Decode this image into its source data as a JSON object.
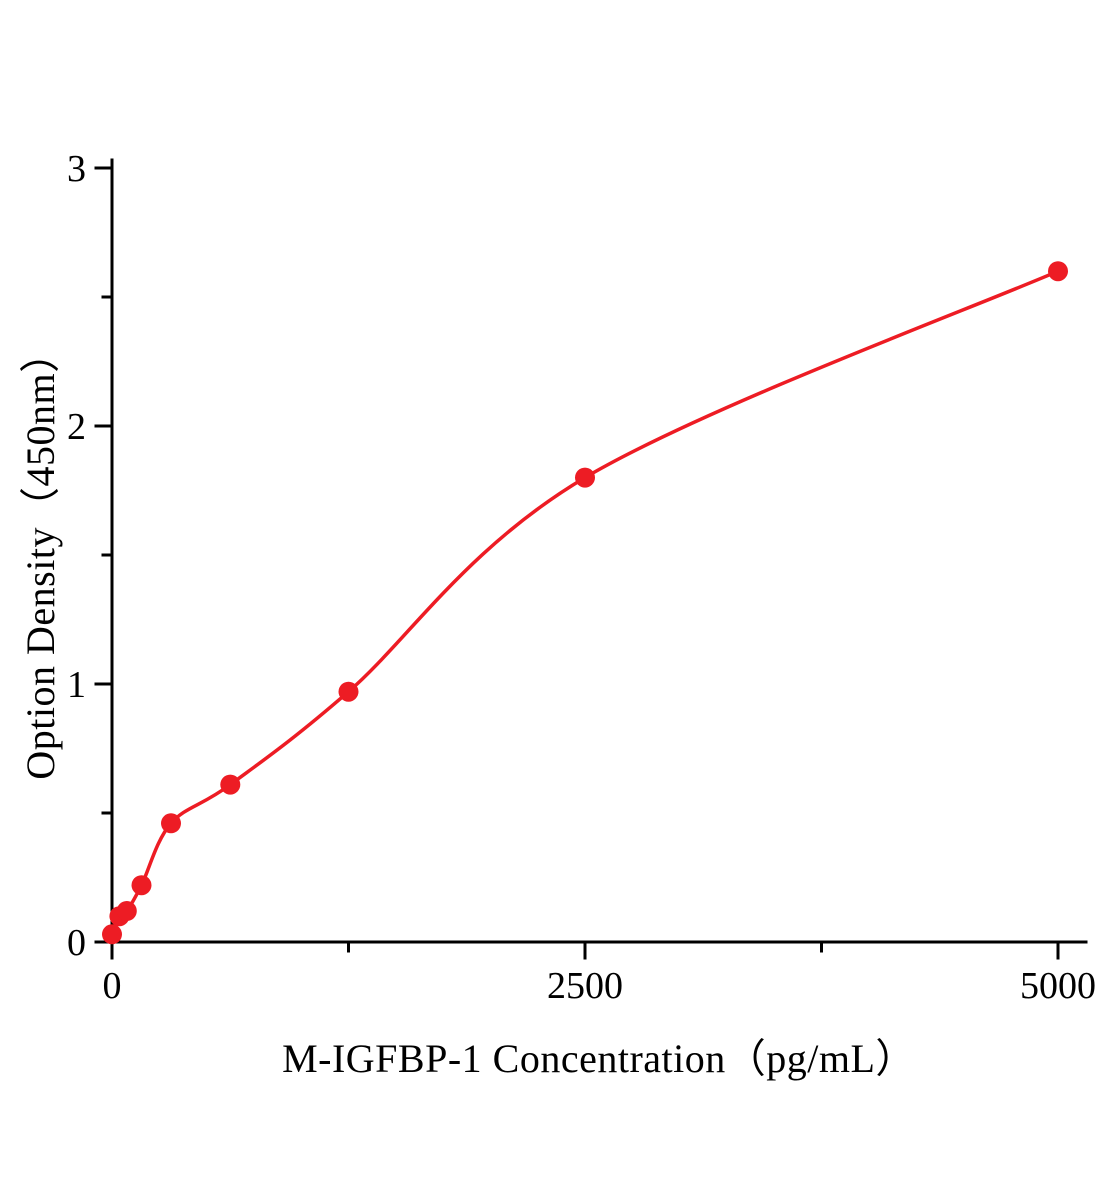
{
  "chart_data": {
    "type": "scatter",
    "title": "",
    "xlabel": "M-IGFBP-1 Concentration（pg/mL）",
    "ylabel": "Option Density（450nm）",
    "x": [
      0,
      39,
      78,
      156,
      312,
      625,
      1250,
      2500,
      5000
    ],
    "y": [
      0.03,
      0.1,
      0.12,
      0.22,
      0.46,
      0.61,
      0.97,
      1.8,
      2.6
    ],
    "xlim": [
      0,
      5000
    ],
    "ylim": [
      0,
      3
    ],
    "x_major_ticks": [
      0,
      2500,
      5000
    ],
    "x_minor_ticks": [
      1250,
      3750
    ],
    "y_major_ticks": [
      0,
      1,
      2,
      3
    ],
    "y_minor_ticks": [
      0.5,
      1.5,
      2.5
    ],
    "grid": false,
    "legend": null,
    "marker": "circle",
    "has_fit_curve": true,
    "point_color": "#ed1c24",
    "line_color": "#ed1c24",
    "axis_color": "#000000",
    "background": "#ffffff"
  }
}
